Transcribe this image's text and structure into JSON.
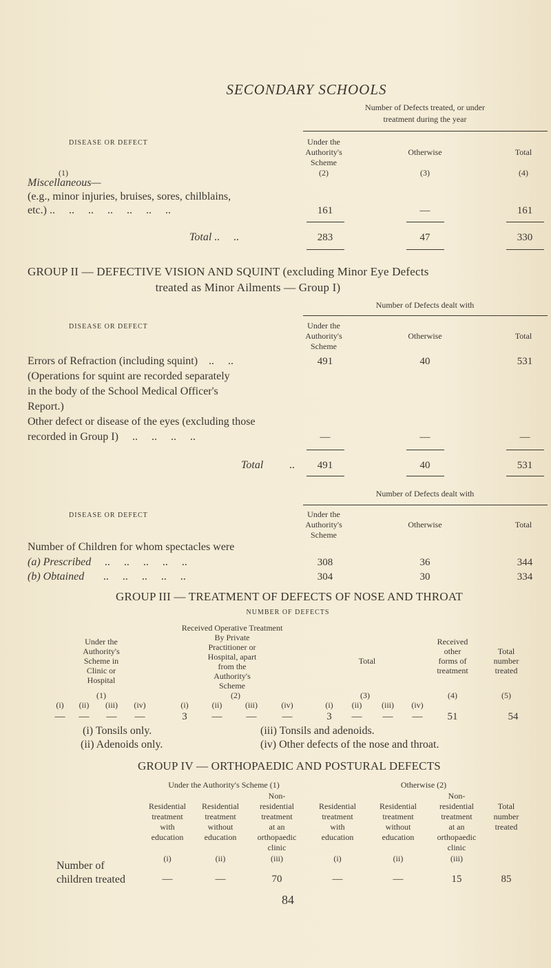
{
  "page_title": "SECONDARY SCHOOLS",
  "misc_table": {
    "caption": [
      "Number of Defects treated, or under",
      "treatment during the year"
    ],
    "head_disease": "DISEASE OR DEFECT",
    "head_scheme": [
      "Under the",
      "Authority's",
      "Scheme"
    ],
    "head_otherwise": "Otherwise",
    "head_total": "Total",
    "col_nums": [
      "(1)",
      "(2)",
      "(3)",
      "(4)"
    ],
    "section": "Miscellaneous—",
    "row_label": [
      "(e.g., minor injuries, bruises, sores, chilblains,",
      "etc.) ..     ..     ..     ..     ..     ..     .."
    ],
    "row_values": [
      "161",
      "—",
      "161"
    ],
    "total_label": "Total ..     ..",
    "total_values": [
      "283",
      "47",
      "330"
    ]
  },
  "group2": {
    "title": [
      "GROUP II — DEFECTIVE VISION AND SQUINT (excluding Minor Eye Defects",
      "treated as Minor Ailments — Group I)"
    ],
    "caption": "Number of Defects dealt with",
    "head_disease": "DISEASE OR DEFECT",
    "head_scheme": [
      "Under the",
      "Authority's",
      "Scheme"
    ],
    "head_otherwise": "Otherwise",
    "head_total": "Total",
    "lines": [
      "Errors of Refraction (including squint)    ..     ..",
      "(Operations for squint are recorded separately",
      "in the body of the School Medical Officer's",
      "Report.)",
      "Other defect or disease of the eyes (excluding those",
      "recorded in Group I)     ..     ..     ..     .."
    ],
    "errors_values": [
      "491",
      "40",
      "531"
    ],
    "other_values": [
      "—",
      "—",
      "—"
    ],
    "total_label": "Total",
    "total_dots": "..",
    "total_values": [
      "491",
      "40",
      "531"
    ]
  },
  "spectacles": {
    "caption": "Number of Defects dealt with",
    "head_disease": "DISEASE OR DEFECT",
    "head_scheme": [
      "Under the",
      "Authority's",
      "Scheme"
    ],
    "head_otherwise": "Otherwise",
    "head_total": "Total",
    "label": "Number of Children for whom spectacles were",
    "rows": [
      {
        "label": "(a) Prescribed     ..     ..     ..     ..     ..",
        "values": [
          "308",
          "36",
          "344"
        ]
      },
      {
        "label": "(b) Obtained       ..     ..     ..     ..     ..",
        "values": [
          "304",
          "30",
          "334"
        ]
      }
    ]
  },
  "group3": {
    "title": "GROUP III — TREATMENT OF DEFECTS OF NOSE AND THROAT",
    "subtitle": "NUMBER OF DEFECTS",
    "head1": [
      "Under the",
      "Authority's",
      "Scheme in",
      "Clinic or",
      "Hospital"
    ],
    "head2": [
      "Received Operative Treatment",
      "By Private",
      "Practitioner or",
      "Hospital, apart",
      "from the",
      "Authority's",
      "Scheme"
    ],
    "head3": "Total",
    "head4": [
      "Received",
      "other",
      "forms of",
      "treatment"
    ],
    "head5": [
      "Total",
      "number",
      "treated"
    ],
    "col_nums": [
      "(1)",
      "(2)",
      "(3)",
      "(4)",
      "(5)"
    ],
    "sub_cols": [
      "(i)",
      "(ii)",
      "(iii)",
      "(iv)"
    ],
    "values": [
      "—",
      "—",
      "—",
      "—",
      "3",
      "—",
      "—",
      "—",
      "3",
      "—",
      "—",
      "—",
      "51",
      "54"
    ],
    "legend": [
      "(i) Tonsils only.",
      "(ii) Adenoids only.",
      "(iii) Tonsils and adenoids.",
      "(iv) Other defects of the nose and throat."
    ]
  },
  "group4": {
    "title": "GROUP IV — ORTHOPAEDIC AND POSTURAL DEFECTS",
    "head_scheme": "Under the Authority's Scheme (1)",
    "head_otherwise": "Otherwise (2)",
    "cols": [
      [
        "",
        "Residential",
        "treatment",
        "with",
        "education"
      ],
      [
        "",
        "Residential",
        "treatment",
        "without",
        "education"
      ],
      [
        "Non-",
        "residential",
        "treatment",
        "at an",
        "orthopaedic",
        "clinic"
      ],
      [
        "",
        "Residential",
        "treatment",
        "with",
        "education"
      ],
      [
        "",
        "Residential",
        "treatment",
        "without",
        "education"
      ],
      [
        "Non-",
        "residential",
        "treatment",
        "at an",
        "orthopaedic",
        "clinic"
      ],
      [
        "",
        "Total",
        "number",
        "treated"
      ]
    ],
    "col_nums": [
      "(i)",
      "(ii)",
      "(iii)",
      "(i)",
      "(ii)",
      "(iii)"
    ],
    "row_label": [
      "Number of",
      "children treated"
    ],
    "values": [
      "—",
      "—",
      "70",
      "—",
      "—",
      "15",
      "85"
    ]
  },
  "page_number": "84"
}
